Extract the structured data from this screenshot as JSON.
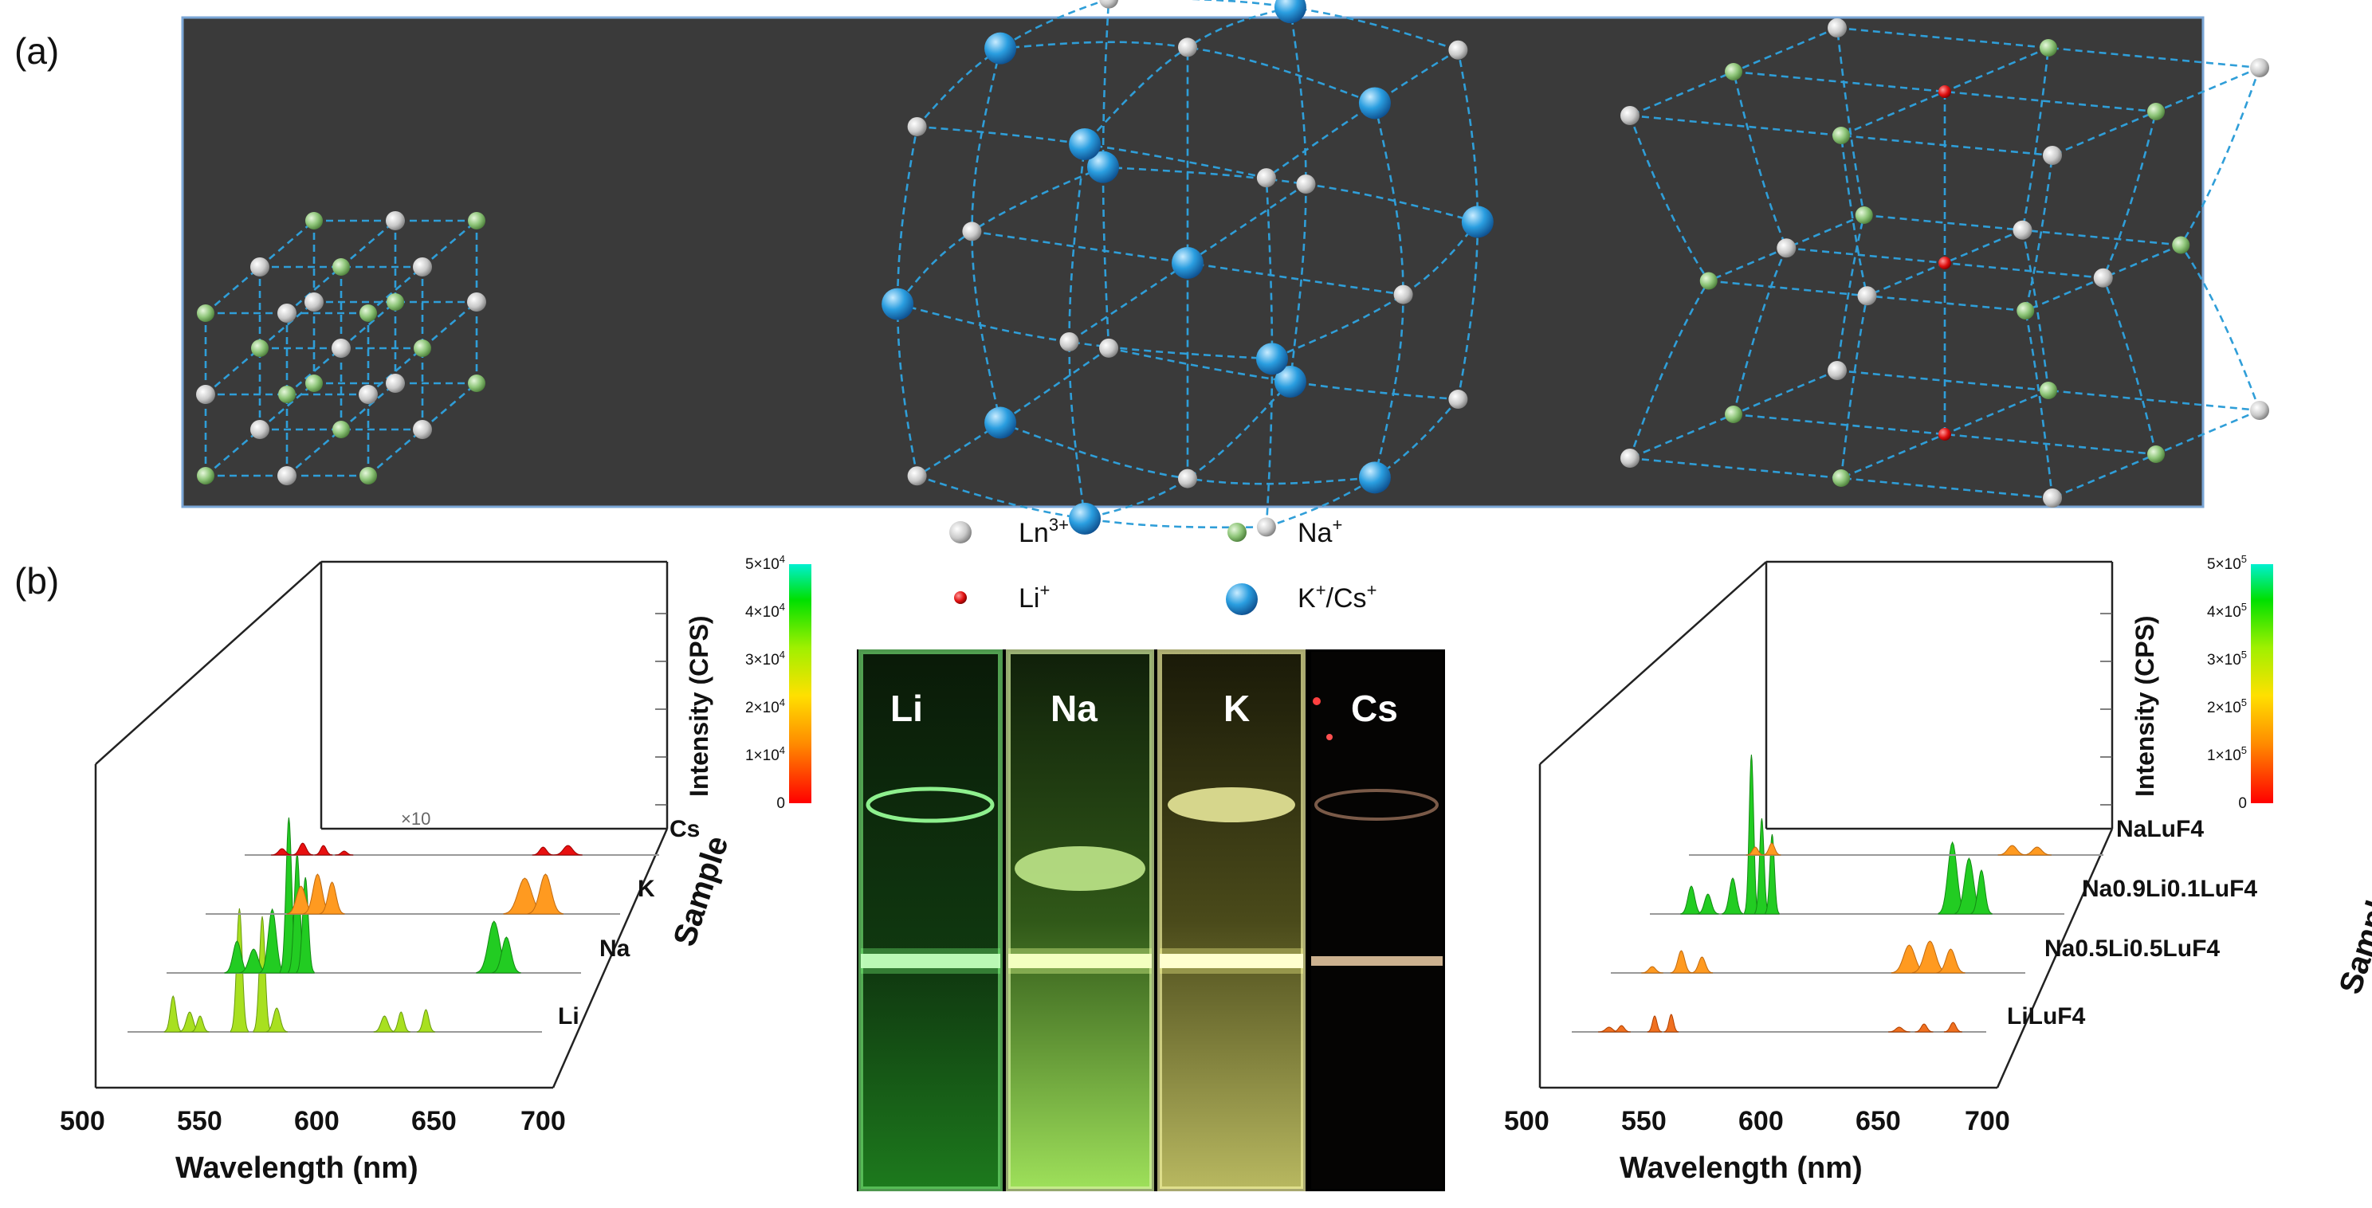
{
  "panels": {
    "a": {
      "label": "(a)"
    },
    "b": {
      "label": "(b)"
    }
  },
  "legend": {
    "ln": {
      "label_base": "Ln",
      "label_sup": "3+"
    },
    "na": {
      "label_base": "Na",
      "label_sup": "+"
    },
    "li": {
      "label_base": "Li",
      "label_sup": "+"
    },
    "kcs": {
      "label_k": "K",
      "label_cs": "Cs",
      "sup": "+",
      "slash": "/"
    }
  },
  "left_plot": {
    "xlabel": "Wavelength (nm)",
    "x_ticks": [
      "500",
      "550",
      "600",
      "650",
      "700"
    ],
    "zlabel": "Sample",
    "series": [
      "Li",
      "Na",
      "K",
      "Cs"
    ],
    "annotation": "×10",
    "ylabel": "Intensity (CPS)",
    "colorbar": {
      "ticks": [
        {
          "base": "5×10",
          "exp": "4"
        },
        {
          "base": "4×10",
          "exp": "4"
        },
        {
          "base": "3×10",
          "exp": "4"
        },
        {
          "base": "2×10",
          "exp": "4"
        },
        {
          "base": "1×10",
          "exp": "4"
        },
        {
          "base": "0",
          "exp": ""
        }
      ]
    }
  },
  "right_plot": {
    "xlabel": "Wavelength (nm)",
    "x_ticks": [
      "500",
      "550",
      "600",
      "650",
      "700"
    ],
    "zlabel": "Sample",
    "series": [
      "LiLuF4",
      "Na0.5Li0.5LuF4",
      "Na0.9Li0.1LuF4",
      "NaLuF4"
    ],
    "ylabel": "Intensity (CPS)",
    "colorbar": {
      "ticks": [
        {
          "base": "5×10",
          "exp": "5"
        },
        {
          "base": "4×10",
          "exp": "5"
        },
        {
          "base": "3×10",
          "exp": "5"
        },
        {
          "base": "2×10",
          "exp": "5"
        },
        {
          "base": "1×10",
          "exp": "5"
        },
        {
          "base": "0",
          "exp": ""
        }
      ]
    }
  },
  "photo": {
    "vials": [
      "Li",
      "Na",
      "K",
      "Cs"
    ]
  },
  "colors": {
    "panel_bg": "#3a3a3a",
    "lattice_line": "#2f9ed8",
    "ln_atom": "#d8d8d8",
    "na_atom": "#8fc67a",
    "li_atom": "#e01010",
    "kcs_atom": "#2a8fd0"
  }
}
